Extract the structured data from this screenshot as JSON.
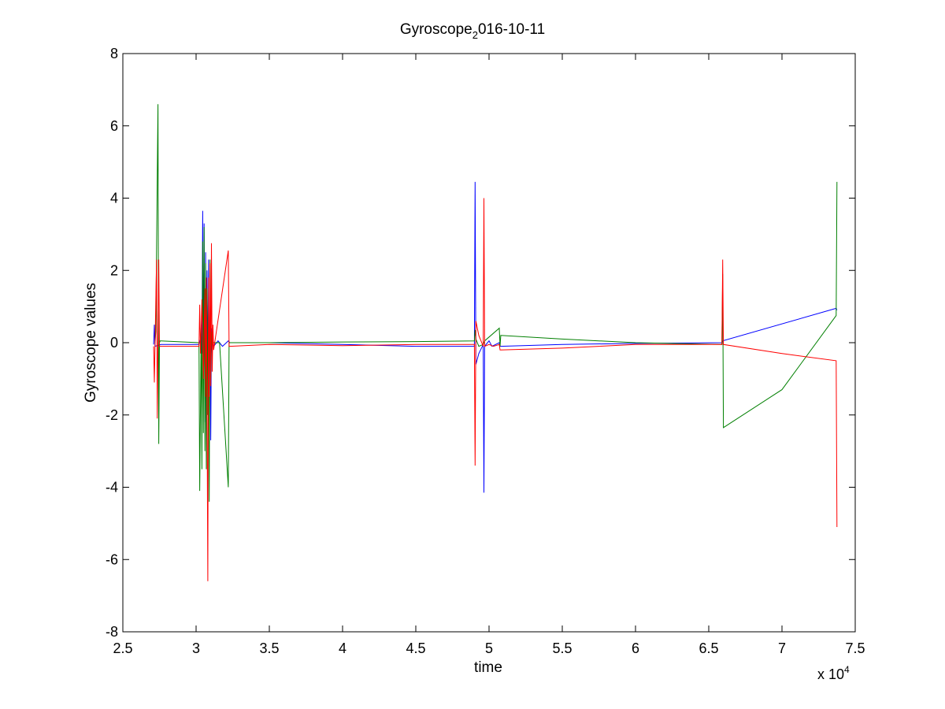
{
  "chart_data": {
    "type": "line",
    "title": {
      "main": "Gyroscope",
      "subscript": "2",
      "rest": "016-10-11"
    },
    "xlabel": "time",
    "ylabel": "Gyroscope values",
    "x_exponent_label": {
      "base": "x 10",
      "power": "4"
    },
    "xlim": [
      25000,
      75000
    ],
    "ylim": [
      -8,
      8
    ],
    "xticks": [
      25000,
      30000,
      35000,
      40000,
      45000,
      50000,
      55000,
      60000,
      65000,
      70000,
      75000
    ],
    "xtick_labels": [
      "2.5",
      "3",
      "3.5",
      "4",
      "4.5",
      "5",
      "5.5",
      "6",
      "6.5",
      "7",
      "7.5"
    ],
    "yticks": [
      -8,
      -6,
      -4,
      -2,
      0,
      2,
      4,
      6,
      8
    ],
    "ytick_labels": [
      "-8",
      "-6",
      "-4",
      "-2",
      "0",
      "2",
      "4",
      "6",
      "8"
    ],
    "grid": false,
    "legend": "none",
    "series": [
      {
        "color": "#0000ff",
        "x": [
          27100,
          27150,
          27200,
          27600,
          27700,
          30200,
          30300,
          30400,
          30450,
          30500,
          30550,
          30600,
          30650,
          30700,
          30750,
          30800,
          30850,
          30900,
          30950,
          31000,
          31050,
          31100,
          31150,
          31200,
          31500,
          31800,
          32200,
          32300,
          35000,
          40000,
          45000,
          49000,
          49050,
          49100,
          49300,
          49600,
          49650,
          49700,
          50000,
          50200,
          50700,
          50750,
          55000,
          60000,
          65900,
          65950,
          73700,
          73750
        ],
        "y": [
          -0.05,
          0.5,
          -0.1,
          -0.05,
          -0.05,
          -0.05,
          0.1,
          -0.3,
          3.65,
          -0.8,
          3.3,
          -2.2,
          2.5,
          -2.9,
          2.0,
          -1.0,
          2.3,
          -1.8,
          1.5,
          -2.7,
          0.4,
          -0.3,
          0.1,
          -0.1,
          0.05,
          -0.1,
          0.05,
          0.0,
          0.0,
          -0.05,
          -0.1,
          -0.1,
          4.45,
          -0.6,
          -0.3,
          -0.05,
          -4.15,
          -0.1,
          0.05,
          -0.1,
          0.0,
          -0.1,
          -0.05,
          -0.02,
          0.0,
          0.05,
          0.95,
          0.9
        ]
      },
      {
        "color": "#007f00",
        "x": [
          27200,
          27250,
          27400,
          27450,
          27500,
          27550,
          27600,
          30200,
          30250,
          30350,
          30400,
          30450,
          30500,
          30550,
          30600,
          30650,
          30700,
          30750,
          30800,
          30850,
          30900,
          30950,
          31000,
          31050,
          31100,
          31150,
          31200,
          31600,
          32200,
          32250,
          35000,
          40000,
          45000,
          49000,
          49050,
          49100,
          49300,
          49600,
          49700,
          50700,
          50750,
          50800,
          55000,
          60000,
          65900,
          65950,
          66000,
          70000,
          73700,
          73750
        ],
        "y": [
          0.0,
          0.3,
          6.6,
          -2.8,
          0.0,
          0.05,
          0.05,
          0.0,
          -4.1,
          0.5,
          -3.5,
          2.8,
          -2.5,
          3.2,
          -3.0,
          2.2,
          -3.5,
          1.5,
          -2.0,
          0.8,
          -4.4,
          2.3,
          -1.0,
          0.3,
          -0.1,
          0.05,
          0.0,
          0.0,
          -4.0,
          0.0,
          0.0,
          0.02,
          0.03,
          0.05,
          0.35,
          0.1,
          -0.1,
          -0.05,
          0.05,
          0.4,
          -0.1,
          0.2,
          0.1,
          0.0,
          -0.05,
          1.9,
          -2.35,
          -1.3,
          0.75,
          4.45
        ]
      },
      {
        "color": "#ff0000",
        "x": [
          27100,
          27150,
          27300,
          27350,
          27450,
          27500,
          27550,
          30200,
          30250,
          30300,
          30400,
          30500,
          30600,
          30650,
          30700,
          30750,
          30800,
          30850,
          30900,
          30950,
          31000,
          31050,
          31100,
          31150,
          31200,
          32200,
          32250,
          32300,
          35000,
          40000,
          45000,
          49000,
          49050,
          49100,
          49300,
          49600,
          49650,
          49700,
          50000,
          50300,
          50700,
          50750,
          55000,
          60000,
          65900,
          65950,
          66000,
          70000,
          73700,
          73750
        ],
        "y": [
          -0.1,
          -1.1,
          2.3,
          -2.1,
          2.3,
          -0.1,
          -0.1,
          -0.1,
          1.05,
          -0.3,
          1.2,
          -1.0,
          1.5,
          -1.5,
          1.8,
          -1.8,
          -6.6,
          1.8,
          -1.5,
          2.2,
          -1.2,
          2.75,
          -0.8,
          0.5,
          -0.2,
          2.55,
          -0.1,
          -0.1,
          -0.05,
          -0.08,
          -0.05,
          -0.05,
          -3.4,
          0.6,
          0.2,
          -0.1,
          4.0,
          -0.1,
          -0.05,
          -0.1,
          -0.05,
          -0.2,
          -0.15,
          -0.05,
          -0.05,
          2.3,
          -0.05,
          -0.3,
          -0.5,
          -5.1
        ]
      }
    ]
  }
}
